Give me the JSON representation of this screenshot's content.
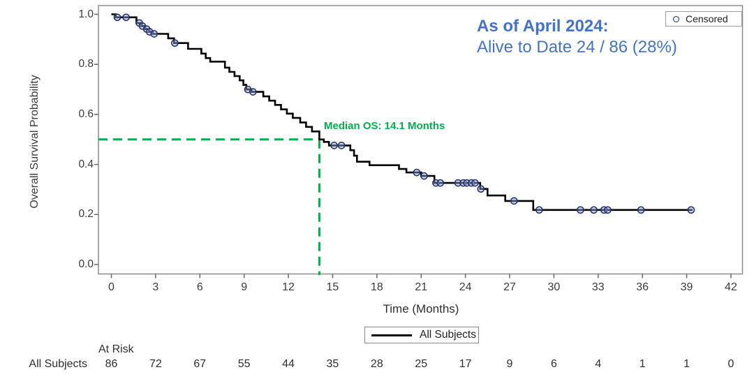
{
  "annotation": {
    "line1": "As of April 2024:",
    "line2": "Alive to Date 24 / 86 (28%)",
    "color": "#4472C4"
  },
  "chart_data": {
    "type": "line",
    "subtype": "kaplan_meier_step",
    "title": "",
    "xlabel": "Time (Months)",
    "ylabel": "Overall Survival Probability",
    "xlim": [
      0,
      42
    ],
    "ylim": [
      0.0,
      1.0
    ],
    "grid": false,
    "x_ticks": [
      0,
      3,
      6,
      9,
      12,
      15,
      18,
      21,
      24,
      27,
      30,
      33,
      36,
      39,
      42
    ],
    "x_tick_labels": [
      "0",
      "3",
      "6",
      "9",
      "12",
      "15",
      "18",
      "21",
      "24",
      "27",
      "30",
      "33",
      "36",
      "39",
      "42"
    ],
    "y_ticks": [
      1.0,
      0.8,
      0.6,
      0.4,
      0.2,
      0.0
    ],
    "y_tick_labels": [
      "1.0",
      "0.8",
      "0.6",
      "0.4",
      "0.2",
      "0.0"
    ],
    "series": [
      {
        "name": "All Subjects",
        "color": "#000000",
        "end_time": 39.4,
        "steps": [
          [
            0,
            1.0
          ],
          [
            0.3,
            0.988
          ],
          [
            1.7,
            0.965
          ],
          [
            2.0,
            0.953
          ],
          [
            2.3,
            0.941
          ],
          [
            2.55,
            0.93
          ],
          [
            2.8,
            0.922
          ],
          [
            3.85,
            0.904
          ],
          [
            4.25,
            0.885
          ],
          [
            5.2,
            0.862
          ],
          [
            6.1,
            0.843
          ],
          [
            6.4,
            0.825
          ],
          [
            6.7,
            0.811
          ],
          [
            7.7,
            0.787
          ],
          [
            8.0,
            0.77
          ],
          [
            8.35,
            0.753
          ],
          [
            8.7,
            0.736
          ],
          [
            8.95,
            0.718
          ],
          [
            9.15,
            0.7
          ],
          [
            9.5,
            0.69
          ],
          [
            10.3,
            0.672
          ],
          [
            10.7,
            0.655
          ],
          [
            11.1,
            0.638
          ],
          [
            11.5,
            0.62
          ],
          [
            11.9,
            0.603
          ],
          [
            12.3,
            0.586
          ],
          [
            12.8,
            0.568
          ],
          [
            13.2,
            0.55
          ],
          [
            13.6,
            0.532
          ],
          [
            14.1,
            0.5
          ],
          [
            14.4,
            0.49
          ],
          [
            14.75,
            0.476
          ],
          [
            16.2,
            0.457
          ],
          [
            16.45,
            0.435
          ],
          [
            16.65,
            0.411
          ],
          [
            17.5,
            0.397
          ],
          [
            19.5,
            0.382
          ],
          [
            20.0,
            0.368
          ],
          [
            21.0,
            0.354
          ],
          [
            21.9,
            0.326
          ],
          [
            25.0,
            0.302
          ],
          [
            25.5,
            0.276
          ],
          [
            26.7,
            0.254
          ],
          [
            28.6,
            0.218
          ]
        ],
        "censored": [
          [
            0.4,
            0.988
          ],
          [
            1.0,
            0.988
          ],
          [
            1.9,
            0.965
          ],
          [
            2.1,
            0.953
          ],
          [
            2.4,
            0.941
          ],
          [
            2.6,
            0.93
          ],
          [
            2.9,
            0.922
          ],
          [
            4.3,
            0.885
          ],
          [
            9.25,
            0.7
          ],
          [
            9.6,
            0.69
          ],
          [
            15.1,
            0.476
          ],
          [
            15.6,
            0.476
          ],
          [
            20.7,
            0.368
          ],
          [
            21.2,
            0.354
          ],
          [
            22.0,
            0.326
          ],
          [
            22.3,
            0.326
          ],
          [
            23.5,
            0.326
          ],
          [
            23.85,
            0.326
          ],
          [
            24.1,
            0.326
          ],
          [
            24.4,
            0.326
          ],
          [
            24.65,
            0.326
          ],
          [
            25.05,
            0.302
          ],
          [
            27.3,
            0.254
          ],
          [
            29.0,
            0.218
          ],
          [
            31.8,
            0.218
          ],
          [
            32.7,
            0.218
          ],
          [
            33.4,
            0.218
          ],
          [
            33.65,
            0.218
          ],
          [
            35.9,
            0.218
          ],
          [
            39.3,
            0.218
          ]
        ]
      }
    ],
    "median": {
      "time": 14.1,
      "prob": 0.5,
      "label": "Median OS: 14.1 Months",
      "color": "#00AE4D",
      "style": "dashed"
    },
    "censored_legend": {
      "label": "Censored",
      "marker": "open-circle",
      "marker_color": "#23306B"
    },
    "series_legend": {
      "label": "All Subjects",
      "position": "bottom-center"
    },
    "at_risk": {
      "header": "At Risk",
      "row_label": "All Subjects",
      "values": [
        86,
        72,
        67,
        55,
        44,
        35,
        28,
        25,
        17,
        9,
        6,
        4,
        1,
        1,
        0
      ]
    }
  }
}
